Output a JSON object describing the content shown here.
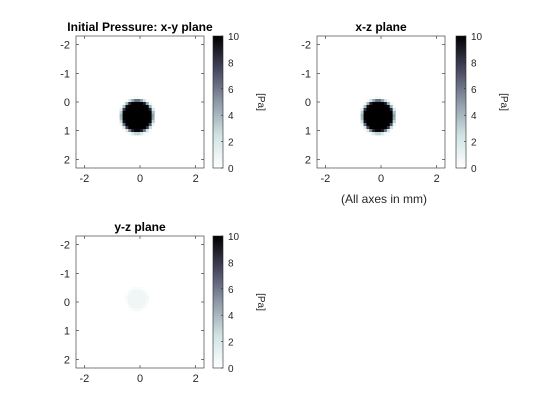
{
  "chart_data": [
    {
      "type": "heatmap",
      "title": "Initial Pressure: x-y plane",
      "x_ticks": [
        -2,
        0,
        2
      ],
      "y_ticks": [
        -2,
        -1,
        0,
        1,
        2
      ],
      "xlim": [
        -2.3,
        2.3
      ],
      "ylim": [
        -2.3,
        2.3
      ],
      "y_axis_reversed": true,
      "source": {
        "center": [
          -0.1,
          0.5
        ],
        "radius": 0.48,
        "peak": 10
      },
      "colorbar": {
        "label": "[Pa]",
        "ticks": [
          0,
          2,
          4,
          6,
          8,
          10
        ],
        "range": [
          0,
          10
        ],
        "colormap": "bone (reversed)"
      }
    },
    {
      "type": "heatmap",
      "title": "x-z plane",
      "x_ticks": [
        -2,
        0,
        2
      ],
      "y_ticks": [
        -2,
        -1,
        0,
        1,
        2
      ],
      "xlim": [
        -2.3,
        2.3
      ],
      "ylim": [
        -2.3,
        2.3
      ],
      "y_axis_reversed": true,
      "source": {
        "center": [
          -0.1,
          0.5
        ],
        "radius": 0.48,
        "peak": 10
      },
      "colorbar": {
        "label": "[Pa]",
        "ticks": [
          0,
          2,
          4,
          6,
          8,
          10
        ],
        "range": [
          0,
          10
        ],
        "colormap": "bone (reversed)"
      }
    },
    {
      "type": "heatmap",
      "title": "y-z plane",
      "x_ticks": [
        -2,
        0,
        2
      ],
      "y_ticks": [
        -2,
        -1,
        0,
        1,
        2
      ],
      "xlim": [
        -2.3,
        2.3
      ],
      "ylim": [
        -2.3,
        2.3
      ],
      "y_axis_reversed": true,
      "source": {
        "center": [
          -0.1,
          -0.1
        ],
        "radius": 0.3,
        "peak": 0.4
      },
      "colorbar": {
        "label": "[Pa]",
        "ticks": [
          0,
          2,
          4,
          6,
          8,
          10
        ],
        "range": [
          0,
          10
        ],
        "colormap": "bone (reversed)"
      }
    }
  ],
  "axes_note": "(All axes in mm)"
}
